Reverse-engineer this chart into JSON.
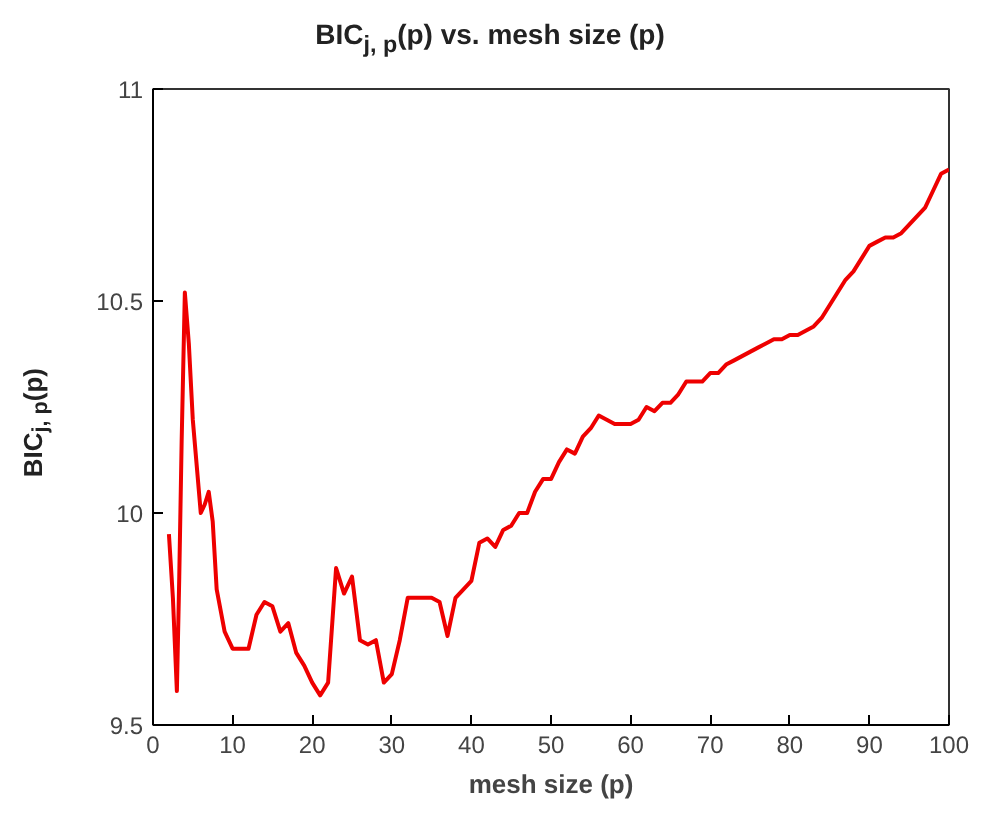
{
  "chart_data": {
    "type": "line",
    "title": "BIC$_{j, p}$(p) vs. mesh size (p)",
    "xlabel": "mesh size (p)",
    "ylabel": "BIC$_{j, p}$(p)",
    "x": [
      2,
      2.5,
      3,
      3.3,
      3.6,
      4,
      4.5,
      5,
      6,
      6.5,
      7,
      7.5,
      8,
      9,
      10,
      11,
      12,
      13,
      14,
      15,
      16,
      17,
      18,
      19,
      20,
      21,
      22,
      23,
      24,
      25,
      26,
      27,
      28,
      29,
      30,
      31,
      32,
      33,
      34,
      35,
      36,
      37,
      38,
      39,
      40,
      41,
      42,
      43,
      44,
      45,
      46,
      47,
      48,
      49,
      50,
      51,
      52,
      53,
      54,
      55,
      56,
      57,
      58,
      59,
      60,
      61,
      62,
      63,
      64,
      65,
      66,
      67,
      68,
      69,
      70,
      71,
      72,
      73,
      74,
      75,
      76,
      77,
      78,
      79,
      80,
      81,
      82,
      83,
      84,
      85,
      86,
      87,
      88,
      89,
      90,
      91,
      92,
      93,
      94,
      95,
      96,
      97,
      98,
      99,
      100
    ],
    "series": [
      {
        "color": "#ee0000",
        "values": [
          9.95,
          9.8,
          9.58,
          9.85,
          10.17,
          10.52,
          10.4,
          10.22,
          10.0,
          10.02,
          10.05,
          9.98,
          9.82,
          9.72,
          9.68,
          9.68,
          9.68,
          9.76,
          9.79,
          9.78,
          9.72,
          9.74,
          9.67,
          9.64,
          9.6,
          9.57,
          9.6,
          9.87,
          9.81,
          9.85,
          9.7,
          9.69,
          9.7,
          9.6,
          9.62,
          9.7,
          9.8,
          9.8,
          9.8,
          9.8,
          9.79,
          9.71,
          9.8,
          9.82,
          9.84,
          9.93,
          9.94,
          9.92,
          9.96,
          9.97,
          10.0,
          10.0,
          10.05,
          10.08,
          10.08,
          10.12,
          10.15,
          10.14,
          10.18,
          10.2,
          10.23,
          10.22,
          10.21,
          10.21,
          10.21,
          10.22,
          10.25,
          10.24,
          10.26,
          10.26,
          10.28,
          10.31,
          10.31,
          10.31,
          10.33,
          10.33,
          10.35,
          10.36,
          10.37,
          10.38,
          10.39,
          10.4,
          10.41,
          10.41,
          10.42,
          10.42,
          10.43,
          10.44,
          10.46,
          10.49,
          10.52,
          10.55,
          10.57,
          10.6,
          10.63,
          10.64,
          10.65,
          10.65,
          10.66,
          10.68,
          10.7,
          10.72,
          10.76,
          10.8,
          10.81
        ]
      }
    ],
    "xlim": [
      0,
      100
    ],
    "xticks": [
      0,
      10,
      20,
      30,
      40,
      50,
      60,
      70,
      80,
      90,
      100
    ],
    "ylim": [
      9.5,
      11
    ],
    "yticks": [
      9.5,
      10,
      10.5,
      11
    ],
    "grid": false,
    "marker": "none",
    "line_style": "solid"
  }
}
